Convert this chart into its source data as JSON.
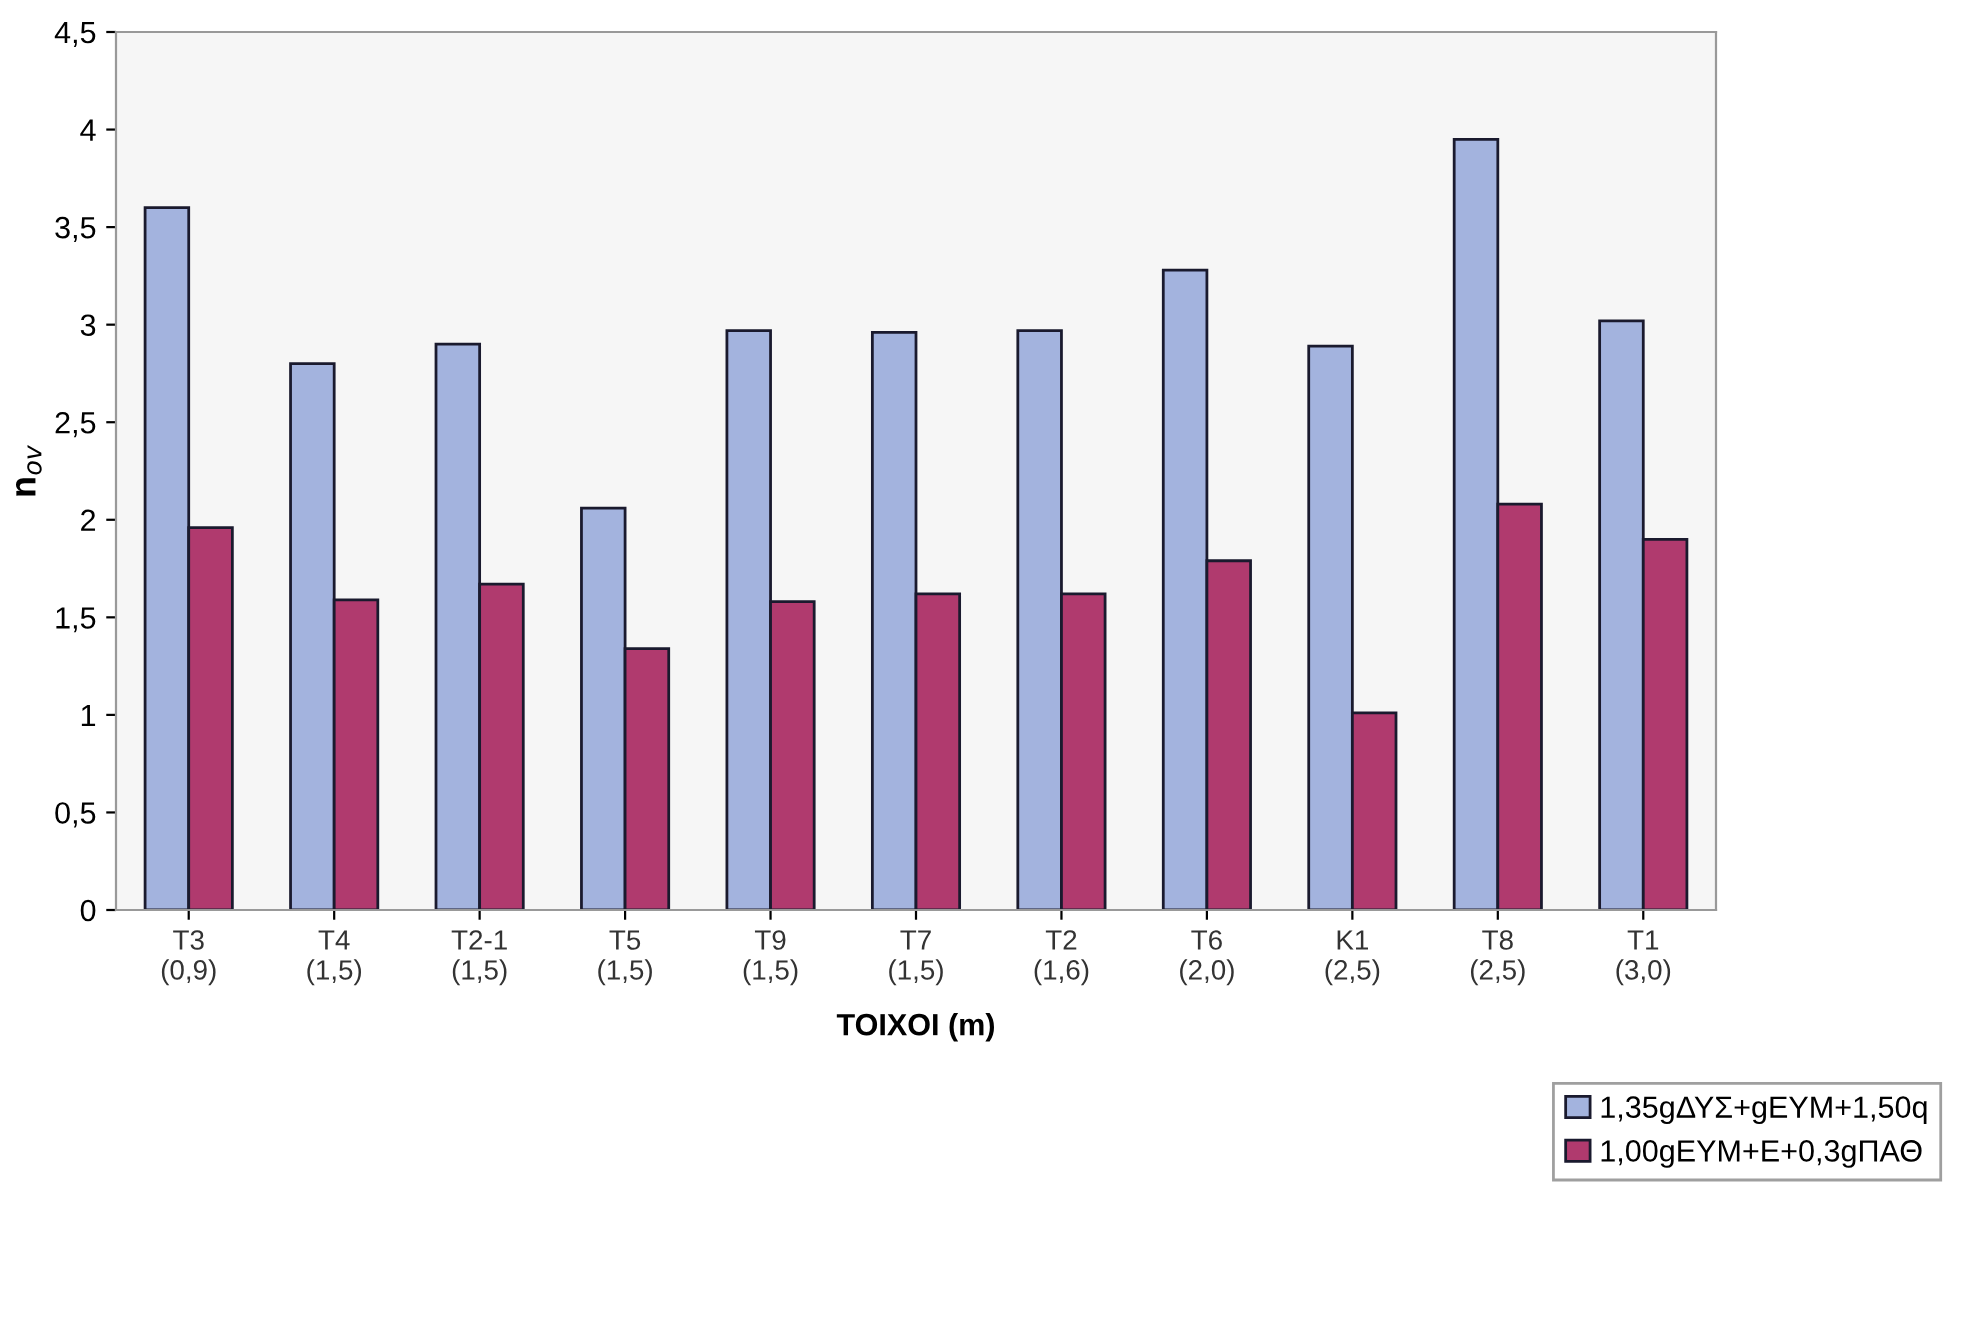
{
  "chart_data": {
    "type": "bar",
    "xlabel": "ΤΟΙΧΟΙ (m)",
    "ylabel": "n$_{ov}$",
    "categories": [
      "T3\n(0,9)",
      "T4\n(1,5)",
      "T2-1\n(1,5)",
      "T5\n(1,5)",
      "T9\n(1,5)",
      "T7\n(1,5)",
      "T2\n(1,6)",
      "T6\n(2,0)",
      "K1\n(2,5)",
      "T8\n(2,5)",
      "T1\n(3,0)"
    ],
    "series": [
      {
        "name": "1,35gΔΥΣ+gΕΥΜ+1,50q",
        "color": "#a3b3de",
        "values": [
          3.6,
          2.8,
          2.9,
          2.06,
          2.97,
          2.96,
          2.97,
          3.28,
          2.89,
          3.95,
          3.02
        ]
      },
      {
        "name": "1,00gΕΥΜ+Ε+0,3gΠΑΘ",
        "color": "#b03a6e",
        "values": [
          1.96,
          1.59,
          1.67,
          1.34,
          1.58,
          1.62,
          1.62,
          1.79,
          1.01,
          2.08,
          1.9
        ]
      }
    ],
    "ylim": [
      0,
      4.5
    ],
    "yticks": [
      0,
      {
        "value": 0.5,
        "label": "0,5"
      },
      1,
      {
        "value": 1.5,
        "label": "1,5"
      },
      2,
      {
        "value": 2.5,
        "label": "2,5"
      },
      3,
      {
        "value": 3.5,
        "label": "3,5"
      },
      4,
      {
        "value": 4.5,
        "label": "4,5"
      }
    ],
    "grid": false,
    "legend": "bottom right"
  }
}
